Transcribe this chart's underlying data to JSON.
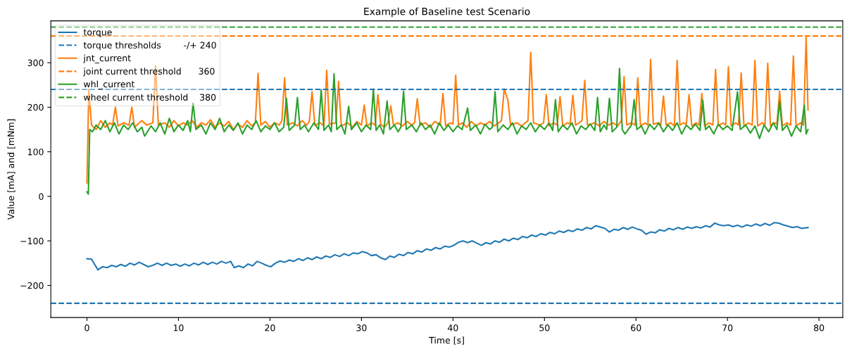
{
  "chart_data": {
    "type": "line",
    "title": "Example of Baseline test Scenario",
    "xlabel": "Time [s]",
    "ylabel": "Value [mA] and [mNm]",
    "xlim": [
      -3.95,
      82.6
    ],
    "ylim": [
      -272,
      394
    ],
    "xticks": [
      0,
      10,
      20,
      30,
      40,
      50,
      60,
      70,
      80
    ],
    "yticks": [
      -200,
      -100,
      0,
      100,
      200,
      300
    ],
    "grid": false,
    "legend": "top left",
    "line_style": "solid",
    "marker": "none",
    "ref_lines": [
      {
        "axis": "y",
        "value": 240,
        "label": "torque thresholds        -/+ 240",
        "color": "#1f77b4",
        "line_style": "dashed"
      },
      {
        "axis": "y",
        "value": -240,
        "color": "#1f77b4",
        "line_style": "dashed"
      },
      {
        "axis": "y",
        "value": 360,
        "label": "joint current threshold      360",
        "color": "#ff7f0e",
        "line_style": "dashed"
      },
      {
        "axis": "y",
        "value": 380,
        "label": "wheel current threshold    380",
        "color": "#2ca02c",
        "line_style": "dashed"
      }
    ],
    "series": [
      {
        "name": "torque",
        "color": "#1f77b4",
        "x": [
          0,
          0.5,
          0.9,
          1.2,
          1.7,
          2.2,
          2.7,
          3.2,
          3.7,
          4.2,
          4.7,
          5.2,
          5.7,
          6.2,
          6.7,
          7.2,
          7.7,
          8.2,
          8.7,
          9.2,
          9.7,
          10.2,
          10.7,
          11.2,
          11.7,
          12.2,
          12.7,
          13.2,
          13.7,
          14.2,
          14.7,
          15.2,
          15.7,
          16.1,
          16.6,
          17.1,
          17.6,
          18.1,
          18.6,
          19.1,
          19.6,
          20.1,
          20.6,
          21.1,
          21.6,
          22.1,
          22.6,
          23.1,
          23.6,
          24.1,
          24.6,
          25.1,
          25.6,
          26.1,
          26.6,
          27.1,
          27.6,
          28.1,
          28.6,
          29.1,
          29.6,
          30.1,
          30.6,
          31.1,
          31.6,
          32.1,
          32.6,
          33.1,
          33.6,
          34.1,
          34.6,
          35.1,
          35.6,
          36.1,
          36.6,
          37.1,
          37.6,
          38.1,
          38.6,
          39.1,
          39.6,
          40.1,
          40.6,
          41.1,
          41.6,
          42.1,
          42.6,
          43.1,
          43.6,
          44.1,
          44.6,
          45.1,
          45.6,
          46.1,
          46.6,
          47.1,
          47.6,
          48.1,
          48.6,
          49.1,
          49.6,
          50.1,
          50.6,
          51.1,
          51.6,
          52.1,
          52.6,
          53.1,
          53.6,
          54.1,
          54.6,
          55.1,
          55.6,
          56.1,
          56.6,
          57.1,
          57.6,
          58.1,
          58.6,
          59.1,
          59.6,
          60.1,
          60.6,
          61.1,
          61.6,
          62.1,
          62.6,
          63.1,
          63.6,
          64.1,
          64.6,
          65.1,
          65.6,
          66.1,
          66.6,
          67.1,
          67.6,
          68.1,
          68.6,
          69.1,
          69.6,
          70.1,
          70.6,
          71.1,
          71.6,
          72.1,
          72.6,
          73.1,
          73.6,
          74.1,
          74.6,
          75.1,
          75.6,
          76.1,
          76.6,
          77.1,
          77.6,
          78.1,
          78.8
        ],
        "values": [
          -140,
          -141,
          -155,
          -165,
          -158,
          -160,
          -155,
          -158,
          -153,
          -157,
          -150,
          -154,
          -148,
          -153,
          -158,
          -155,
          -150,
          -155,
          -150,
          -155,
          -152,
          -157,
          -152,
          -156,
          -150,
          -154,
          -148,
          -153,
          -148,
          -152,
          -146,
          -150,
          -146,
          -160,
          -156,
          -160,
          -152,
          -156,
          -146,
          -150,
          -155,
          -158,
          -150,
          -145,
          -148,
          -143,
          -146,
          -140,
          -144,
          -138,
          -142,
          -136,
          -140,
          -134,
          -137,
          -131,
          -135,
          -129,
          -133,
          -127,
          -129,
          -124,
          -127,
          -133,
          -131,
          -138,
          -142,
          -134,
          -137,
          -130,
          -133,
          -126,
          -129,
          -122,
          -125,
          -118,
          -121,
          -115,
          -118,
          -112,
          -114,
          -110,
          -103,
          -100,
          -104,
          -100,
          -105,
          -110,
          -104,
          -107,
          -100,
          -103,
          -96,
          -100,
          -94,
          -97,
          -90,
          -93,
          -87,
          -90,
          -84,
          -87,
          -81,
          -84,
          -78,
          -81,
          -76,
          -79,
          -73,
          -76,
          -70,
          -73,
          -66,
          -69,
          -72,
          -80,
          -74,
          -76,
          -70,
          -74,
          -69,
          -73,
          -76,
          -85,
          -80,
          -82,
          -75,
          -78,
          -72,
          -75,
          -70,
          -74,
          -69,
          -72,
          -68,
          -71,
          -66,
          -69,
          -60,
          -64,
          -66,
          -64,
          -68,
          -65,
          -69,
          -64,
          -67,
          -62,
          -66,
          -61,
          -65,
          -59,
          -60,
          -64,
          -67,
          -70,
          -68,
          -72,
          -70
        ]
      },
      {
        "name": "jnt_current",
        "color": "#ff7f0e",
        "x": [
          0,
          0.2,
          0.5,
          1,
          1.5,
          2,
          2.5,
          2.8,
          3.1,
          3.4,
          4,
          4.6,
          4.9,
          5.2,
          6,
          6.5,
          7.2,
          7.5,
          7.8,
          8.5,
          9,
          9.5,
          10,
          10.5,
          11,
          11.5,
          12,
          12.5,
          13,
          13.5,
          14,
          14.5,
          15,
          15.5,
          16,
          16.5,
          17,
          17.5,
          18,
          18.4,
          18.7,
          19,
          19.5,
          20,
          20.5,
          21,
          21.3,
          21.6,
          21.9,
          22.5,
          23,
          23.5,
          24,
          24.3,
          24.6,
          24.9,
          25.5,
          25.9,
          26.2,
          26.5,
          27.2,
          27.5,
          27.8,
          28.5,
          29,
          29.5,
          30,
          30.3,
          30.6,
          31.1,
          31.5,
          31.8,
          32.1,
          32.5,
          32.9,
          33.2,
          33.5,
          34,
          34.5,
          35,
          35.5,
          35.8,
          36.1,
          36.4,
          37,
          37.5,
          38,
          38.6,
          38.9,
          39.2,
          39.7,
          40,
          40.3,
          40.6,
          41,
          41.5,
          42,
          42.5,
          43,
          43.5,
          44,
          44.5,
          45,
          45.3,
          45.6,
          46,
          46.3,
          47,
          47.5,
          48.2,
          48.5,
          48.8,
          49.5,
          49.9,
          50.2,
          50.5,
          51,
          51.4,
          51.7,
          52,
          52.5,
          52.8,
          53.1,
          53.4,
          53.8,
          54.1,
          54.4,
          54.7,
          55.5,
          56,
          56.5,
          57,
          57.5,
          58,
          58.4,
          58.7,
          59,
          59.5,
          59.9,
          60.2,
          60.5,
          61,
          61.3,
          61.6,
          61.9,
          62.4,
          62.7,
          63,
          63.3,
          63.8,
          64.2,
          64.5,
          64.8,
          65.2,
          65.5,
          65.8,
          66.1,
          66.6,
          66.9,
          67.2,
          67.5,
          68,
          68.4,
          68.7,
          69,
          69.5,
          69.8,
          70.1,
          70.4,
          70.9,
          71.2,
          71.5,
          71.8,
          72.3,
          72.7,
          73,
          73.3,
          73.8,
          74.1,
          74.4,
          74.7,
          75.1,
          75.4,
          75.7,
          76,
          76.5,
          76.9,
          77.2,
          77.5,
          78,
          78.3,
          78.6,
          78.8
        ],
        "values": [
          30,
          240,
          160,
          150,
          170,
          155,
          165,
          160,
          200,
          158,
          165,
          160,
          200,
          155,
          170,
          160,
          165,
          293,
          160,
          165,
          155,
          170,
          158,
          165,
          160,
          170,
          155,
          165,
          160,
          172,
          155,
          165,
          158,
          168,
          150,
          162,
          155,
          170,
          158,
          165,
          276,
          160,
          168,
          155,
          165,
          160,
          170,
          266,
          160,
          165,
          158,
          170,
          160,
          168,
          235,
          160,
          165,
          158,
          283,
          162,
          165,
          258,
          158,
          165,
          155,
          168,
          160,
          205,
          158,
          165,
          160,
          228,
          162,
          155,
          165,
          203,
          160,
          165,
          158,
          168,
          160,
          165,
          219,
          160,
          165,
          155,
          168,
          160,
          231,
          158,
          165,
          162,
          272,
          160,
          165,
          155,
          168,
          158,
          165,
          160,
          168,
          158,
          165,
          170,
          241,
          216,
          160,
          165,
          158,
          170,
          323,
          165,
          160,
          165,
          228,
          158,
          165,
          160,
          224,
          158,
          165,
          162,
          227,
          160,
          165,
          170,
          260,
          160,
          165,
          158,
          168,
          160,
          165,
          158,
          170,
          269,
          160,
          165,
          160,
          266,
          158,
          165,
          160,
          307,
          162,
          165,
          158,
          225,
          160,
          165,
          158,
          305,
          160,
          165,
          162,
          228,
          158,
          165,
          160,
          231,
          158,
          165,
          160,
          285,
          158,
          165,
          160,
          291,
          158,
          165,
          160,
          277,
          158,
          165,
          160,
          305,
          158,
          165,
          160,
          299,
          158,
          165,
          162,
          236,
          158,
          165,
          160,
          315,
          158,
          165,
          160,
          357,
          194
        ]
      },
      {
        "name": "whl_current",
        "color": "#2ca02c",
        "x": [
          0,
          0.15,
          0.3,
          0.6,
          1,
          1.5,
          2,
          2.5,
          3,
          3.5,
          4,
          4.5,
          5,
          5.5,
          6,
          6.3,
          7,
          7.5,
          8,
          8.5,
          9,
          9.5,
          10,
          10.5,
          11,
          11.3,
          11.6,
          11.9,
          12.5,
          13,
          13.5,
          14,
          14.5,
          15,
          15.5,
          16,
          16.5,
          17,
          17.5,
          18,
          18.5,
          19,
          19.5,
          20,
          20.5,
          21,
          21.5,
          21.8,
          22.1,
          22.7,
          23,
          23.3,
          23.8,
          24.2,
          24.8,
          25.3,
          25.6,
          25.9,
          26.4,
          26.7,
          27,
          27.3,
          27.8,
          28.2,
          28.6,
          28.9,
          29.5,
          30,
          30.5,
          31,
          31.3,
          31.6,
          32,
          32.4,
          32.8,
          33.1,
          33.6,
          34,
          34.3,
          34.6,
          34.9,
          35.5,
          36,
          36.5,
          37,
          37.5,
          38,
          38.5,
          39,
          39.5,
          40,
          40.5,
          41,
          41.6,
          41.9,
          42.5,
          43,
          43.5,
          44,
          44.3,
          44.6,
          44.9,
          45.5,
          46,
          46.5,
          47,
          47.5,
          48,
          48.5,
          49,
          49.5,
          50,
          50.5,
          50.9,
          51.2,
          51.5,
          52,
          52.5,
          53,
          53.5,
          54,
          54.5,
          55,
          55.5,
          55.8,
          56.1,
          56.5,
          56.8,
          57.1,
          57.4,
          57.9,
          58.2,
          58.5,
          58.8,
          59.5,
          59.8,
          60.1,
          60.6,
          61,
          61.5,
          62,
          62.5,
          63,
          63.5,
          64,
          64.5,
          65,
          65.5,
          66,
          66.5,
          67,
          67.3,
          67.6,
          68,
          68.5,
          69,
          69.5,
          70,
          70.5,
          71.1,
          71.4,
          72,
          72.5,
          73,
          73.5,
          74,
          74.5,
          75,
          75.4,
          75.7,
          76,
          76.5,
          77,
          77.5,
          78,
          78.4,
          78.6,
          78.8
        ],
        "values": [
          10,
          5,
          150,
          145,
          160,
          150,
          170,
          145,
          165,
          140,
          160,
          150,
          165,
          145,
          155,
          135,
          158,
          145,
          165,
          140,
          175,
          145,
          160,
          148,
          170,
          145,
          209,
          150,
          160,
          140,
          165,
          150,
          175,
          145,
          160,
          148,
          165,
          140,
          160,
          150,
          170,
          145,
          158,
          150,
          165,
          145,
          155,
          220,
          148,
          160,
          222,
          150,
          160,
          145,
          165,
          150,
          239,
          148,
          160,
          145,
          275,
          150,
          160,
          140,
          202,
          150,
          165,
          145,
          160,
          150,
          241,
          148,
          160,
          140,
          214,
          150,
          160,
          145,
          155,
          236,
          150,
          160,
          145,
          165,
          150,
          160,
          140,
          165,
          148,
          160,
          145,
          158,
          150,
          198,
          148,
          160,
          140,
          162,
          150,
          155,
          235,
          145,
          160,
          150,
          165,
          140,
          158,
          150,
          165,
          145,
          160,
          150,
          165,
          148,
          217,
          145,
          160,
          150,
          165,
          140,
          158,
          150,
          162,
          148,
          222,
          145,
          160,
          150,
          220,
          145,
          155,
          287,
          150,
          140,
          160,
          217,
          150,
          158,
          140,
          162,
          150,
          165,
          145,
          160,
          148,
          165,
          140,
          160,
          150,
          162,
          148,
          216,
          150,
          158,
          140,
          162,
          150,
          158,
          148,
          235,
          150,
          160,
          142,
          158,
          130,
          160,
          145,
          165,
          150,
          213,
          148,
          160,
          135,
          158,
          145,
          205,
          140,
          150
        ]
      }
    ]
  }
}
